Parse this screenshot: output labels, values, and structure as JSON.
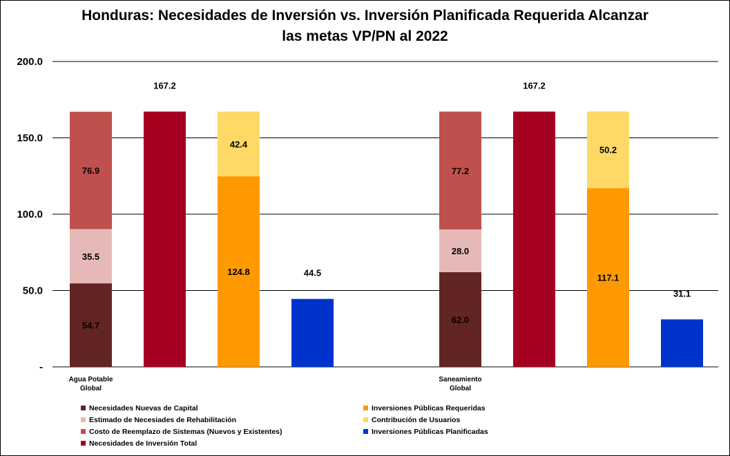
{
  "chart_data": {
    "type": "bar",
    "title_lines": [
      "Honduras: Necesidades de Inversión  vs. Inversión Planificada Requerida Alcanzar",
      "las metas VP/PN al 2022"
    ],
    "ylim": [
      0,
      200
    ],
    "yticks": [
      {
        "value": 0,
        "label": "-"
      },
      {
        "value": 50,
        "label": "50.0"
      },
      {
        "value": 100,
        "label": "100.0"
      },
      {
        "value": 150,
        "label": "150.0"
      },
      {
        "value": 200,
        "label": "200.0"
      }
    ],
    "grid": true,
    "legend_position": "bottom",
    "categories": [
      {
        "lines": [
          "Agua Potable",
          "Global"
        ]
      },
      {
        "lines": [
          "Saneamiento",
          "Global"
        ]
      }
    ],
    "series": [
      {
        "name": "Necesidades Nuevas de Capital",
        "color": "#632523",
        "values": [
          54.7,
          62.0
        ]
      },
      {
        "name": "Estimado de Necesiades de Rehabilitación",
        "color": "#E6B9B8",
        "values": [
          35.5,
          28.0
        ]
      },
      {
        "name": "Costo de Reemplazo de Sistemas (Nuevos y Existentes)",
        "color": "#C0504D",
        "values": [
          76.9,
          77.2
        ]
      },
      {
        "name": "Necesidades de Inversión Total",
        "color": "#A50021",
        "values": [
          167.2,
          167.2
        ]
      },
      {
        "name": "Inversiones Públicas Requeridas",
        "color": "#FF9900",
        "values": [
          124.8,
          117.1
        ]
      },
      {
        "name": "Contribución de Usuarios",
        "color": "#FFD966",
        "values": [
          42.4,
          50.2
        ]
      },
      {
        "name": "Inversiones Públicas Planificadas",
        "color": "#0033CC",
        "values": [
          44.5,
          31.1
        ]
      }
    ],
    "columns": [
      {
        "stack": [
          0,
          1,
          2
        ],
        "label_total": false
      },
      {
        "stack": [
          3
        ],
        "label_total": true
      },
      {
        "stack": [
          4,
          5
        ],
        "label_total": false
      },
      {
        "stack": [
          6
        ],
        "label_total": true
      }
    ],
    "legend_order": [
      0,
      4,
      1,
      5,
      2,
      6,
      3
    ]
  }
}
